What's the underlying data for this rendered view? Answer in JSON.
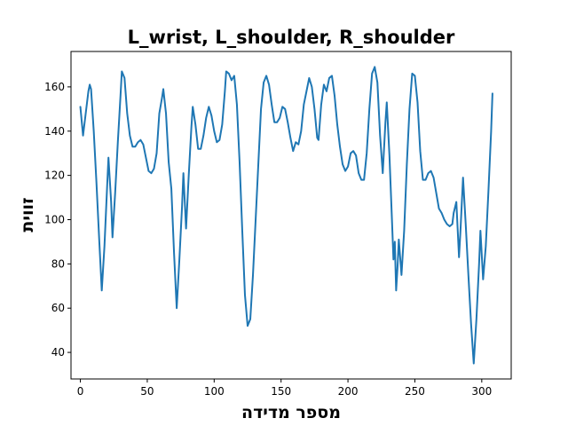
{
  "chart_data": {
    "type": "line",
    "title": "L_wrist, L_shoulder, R_shoulder",
    "xlabel": "מספר מדידה",
    "ylabel": "זווית",
    "xlim": [
      -7,
      322
    ],
    "ylim": [
      28,
      176
    ],
    "x_ticks": [
      0,
      50,
      100,
      150,
      200,
      250,
      300
    ],
    "y_ticks": [
      40,
      60,
      80,
      100,
      120,
      140,
      160
    ],
    "grid": false,
    "series": [
      {
        "color": "#1f77b4",
        "points": [
          [
            0,
            151
          ],
          [
            2,
            138
          ],
          [
            4,
            148
          ],
          [
            6,
            158
          ],
          [
            7,
            161
          ],
          [
            8,
            159
          ],
          [
            10,
            140
          ],
          [
            12,
            117
          ],
          [
            14,
            92
          ],
          [
            16,
            68
          ],
          [
            18,
            88
          ],
          [
            20,
            115
          ],
          [
            21,
            128
          ],
          [
            23,
            108
          ],
          [
            24,
            92
          ],
          [
            26,
            112
          ],
          [
            28,
            135
          ],
          [
            30,
            156
          ],
          [
            31,
            167
          ],
          [
            33,
            164
          ],
          [
            35,
            148
          ],
          [
            37,
            138
          ],
          [
            39,
            133
          ],
          [
            41,
            133
          ],
          [
            43,
            135
          ],
          [
            45,
            136
          ],
          [
            47,
            134
          ],
          [
            49,
            128
          ],
          [
            51,
            122
          ],
          [
            53,
            121
          ],
          [
            55,
            123
          ],
          [
            57,
            130
          ],
          [
            59,
            148
          ],
          [
            61,
            155
          ],
          [
            62,
            159
          ],
          [
            64,
            148
          ],
          [
            66,
            126
          ],
          [
            68,
            114
          ],
          [
            70,
            85
          ],
          [
            72,
            60
          ],
          [
            74,
            82
          ],
          [
            76,
            106
          ],
          [
            77,
            121
          ],
          [
            79,
            96
          ],
          [
            81,
            120
          ],
          [
            83,
            142
          ],
          [
            84,
            151
          ],
          [
            86,
            143
          ],
          [
            88,
            132
          ],
          [
            90,
            132
          ],
          [
            92,
            138
          ],
          [
            94,
            146
          ],
          [
            96,
            151
          ],
          [
            98,
            147
          ],
          [
            100,
            140
          ],
          [
            102,
            135
          ],
          [
            104,
            136
          ],
          [
            106,
            143
          ],
          [
            108,
            158
          ],
          [
            109,
            167
          ],
          [
            111,
            166
          ],
          [
            113,
            163
          ],
          [
            115,
            165
          ],
          [
            117,
            152
          ],
          [
            119,
            126
          ],
          [
            121,
            95
          ],
          [
            123,
            66
          ],
          [
            125,
            52
          ],
          [
            127,
            55
          ],
          [
            129,
            75
          ],
          [
            131,
            100
          ],
          [
            133,
            125
          ],
          [
            135,
            150
          ],
          [
            137,
            162
          ],
          [
            139,
            165
          ],
          [
            141,
            161
          ],
          [
            143,
            152
          ],
          [
            145,
            144
          ],
          [
            147,
            144
          ],
          [
            149,
            146
          ],
          [
            151,
            151
          ],
          [
            153,
            150
          ],
          [
            155,
            144
          ],
          [
            157,
            137
          ],
          [
            159,
            131
          ],
          [
            161,
            135
          ],
          [
            163,
            134
          ],
          [
            165,
            140
          ],
          [
            167,
            152
          ],
          [
            169,
            158
          ],
          [
            171,
            164
          ],
          [
            173,
            160
          ],
          [
            175,
            150
          ],
          [
            177,
            137
          ],
          [
            178,
            136
          ],
          [
            180,
            152
          ],
          [
            182,
            161
          ],
          [
            184,
            158
          ],
          [
            186,
            164
          ],
          [
            188,
            165
          ],
          [
            190,
            156
          ],
          [
            192,
            143
          ],
          [
            194,
            133
          ],
          [
            196,
            125
          ],
          [
            198,
            122
          ],
          [
            200,
            124
          ],
          [
            202,
            130
          ],
          [
            204,
            131
          ],
          [
            206,
            129
          ],
          [
            208,
            121
          ],
          [
            210,
            118
          ],
          [
            212,
            118
          ],
          [
            214,
            130
          ],
          [
            216,
            150
          ],
          [
            218,
            166
          ],
          [
            220,
            169
          ],
          [
            222,
            162
          ],
          [
            224,
            138
          ],
          [
            226,
            121
          ],
          [
            228,
            144
          ],
          [
            229,
            153
          ],
          [
            231,
            129
          ],
          [
            233,
            98
          ],
          [
            234,
            82
          ],
          [
            235,
            90
          ],
          [
            236,
            68
          ],
          [
            237,
            78
          ],
          [
            238,
            91
          ],
          [
            240,
            75
          ],
          [
            242,
            95
          ],
          [
            244,
            125
          ],
          [
            246,
            150
          ],
          [
            248,
            166
          ],
          [
            250,
            165
          ],
          [
            252,
            153
          ],
          [
            254,
            131
          ],
          [
            256,
            118
          ],
          [
            258,
            118
          ],
          [
            260,
            121
          ],
          [
            262,
            122
          ],
          [
            264,
            119
          ],
          [
            266,
            112
          ],
          [
            268,
            105
          ],
          [
            270,
            103
          ],
          [
            272,
            100
          ],
          [
            274,
            98
          ],
          [
            276,
            97
          ],
          [
            278,
            98
          ],
          [
            279,
            103
          ],
          [
            281,
            108
          ],
          [
            283,
            83
          ],
          [
            284,
            94
          ],
          [
            286,
            119
          ],
          [
            288,
            98
          ],
          [
            290,
            75
          ],
          [
            292,
            53
          ],
          [
            294,
            35
          ],
          [
            296,
            55
          ],
          [
            298,
            80
          ],
          [
            299,
            95
          ],
          [
            301,
            73
          ],
          [
            303,
            88
          ],
          [
            305,
            113
          ],
          [
            307,
            140
          ],
          [
            308,
            157
          ]
        ]
      }
    ]
  }
}
